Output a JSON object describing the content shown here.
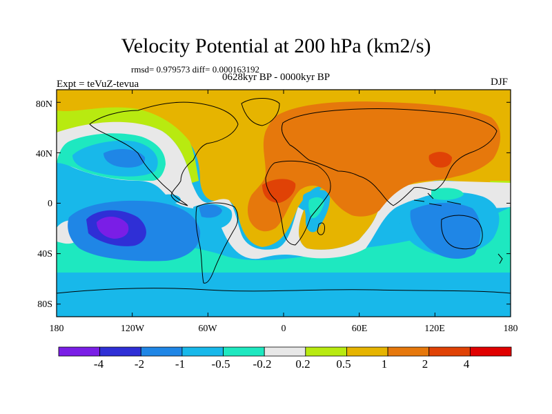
{
  "title": "Velocity Potential at 200 hPa (km2/s)",
  "stats": "rmsd= 0.979573 diff= 0.000163192",
  "left_label": "Expt = teVuZ-tevua",
  "center_label": "0628kyr BP - 0000kyr BP",
  "right_label": "DJF",
  "lat_ticks": [
    "80N",
    "40N",
    "0",
    "40S",
    "80S"
  ],
  "lon_ticks": [
    "180",
    "120W",
    "60W",
    "0",
    "60E",
    "120E",
    "180"
  ],
  "colorbar": {
    "labels": [
      "-4",
      "-2",
      "-1",
      "-0.5",
      "-0.2",
      "0.2",
      "0.5",
      "1",
      "2",
      "4"
    ],
    "colors": [
      "#7a1ee6",
      "#2f2fd6",
      "#1f86e6",
      "#18b8ea",
      "#1ee8c0",
      "#e8e8e8",
      "#b8ea10",
      "#e6b400",
      "#e6780c",
      "#e04206",
      "#e00000"
    ]
  },
  "palette": {
    "ocean_default": "#18b8ea",
    "positive_mid": "#e6b400",
    "positive_high": "#e6780c",
    "coastline": "#000000"
  }
}
